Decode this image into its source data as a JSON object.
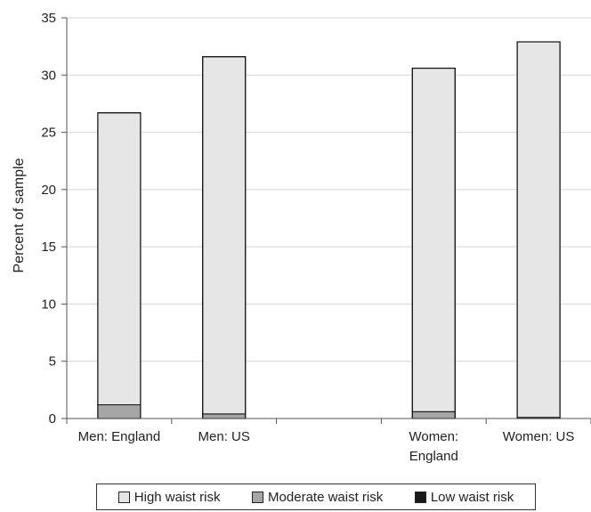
{
  "chart_data": {
    "type": "bar",
    "stacked": true,
    "categories": [
      "Men: England",
      "Men: US",
      "",
      "Women: England",
      "Women: US"
    ],
    "category_lines": [
      [
        "Men: England"
      ],
      [
        "Men: US"
      ],
      [],
      [
        "Women:",
        "England"
      ],
      [
        "Women: US"
      ]
    ],
    "series": [
      {
        "name": "Low waist risk",
        "color": "#1a1a1a",
        "values": [
          0.0,
          0.0,
          null,
          0.0,
          0.0
        ]
      },
      {
        "name": "Moderate waist risk",
        "color": "#a6a6a6",
        "values": [
          1.2,
          0.4,
          null,
          0.6,
          0.1
        ]
      },
      {
        "name": "High waist risk",
        "color": "#e6e6e6",
        "values": [
          25.5,
          31.2,
          null,
          30.0,
          32.8
        ]
      }
    ],
    "legend_order": [
      "High waist risk",
      "Moderate waist risk",
      "Low waist risk"
    ],
    "legend_position": "bottom",
    "ylabel": "Percent of sample",
    "xlabel": "",
    "ylim": [
      0,
      35
    ],
    "yticks": [
      0,
      5,
      10,
      15,
      20,
      25,
      30,
      35
    ],
    "grid": true
  }
}
